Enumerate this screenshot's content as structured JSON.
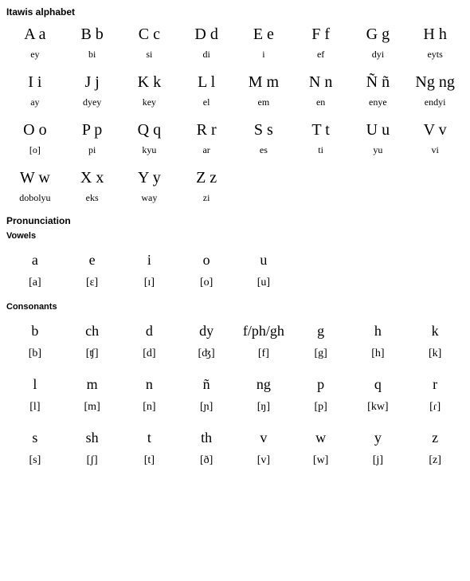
{
  "titles": {
    "alphabet": "Itawis alphabet",
    "pronunciation": "Pronunciation",
    "vowels": "Vowels",
    "consonants": "Consonants"
  },
  "alphabet": {
    "rows": [
      {
        "letters": [
          "A a",
          "B b",
          "C c",
          "D d",
          "E e",
          "F f",
          "G g",
          "H h"
        ],
        "names": [
          "ey",
          "bi",
          "si",
          "di",
          "i",
          "ef",
          "dyi",
          "eyts"
        ]
      },
      {
        "letters": [
          "I i",
          "J j",
          "K k",
          "L l",
          "M m",
          "N n",
          "Ñ ñ",
          "Ng ng"
        ],
        "names": [
          "ay",
          "dyey",
          "key",
          "el",
          "em",
          "en",
          "enye",
          "endyi"
        ]
      },
      {
        "letters": [
          "O o",
          "P p",
          "Q q",
          "R r",
          "S s",
          "T t",
          "U u",
          "V v"
        ],
        "names": [
          "[o]",
          "pi",
          "kyu",
          "ar",
          "es",
          "ti",
          "yu",
          "vi"
        ]
      },
      {
        "letters": [
          "W w",
          "X x",
          "Y y",
          "Z z",
          "",
          "",
          "",
          ""
        ],
        "names": [
          "dobolyu",
          "eks",
          "way",
          "zi",
          "",
          "",
          "",
          ""
        ]
      }
    ]
  },
  "vowels": {
    "letters": [
      "a",
      "e",
      "i",
      "o",
      "u",
      "",
      "",
      ""
    ],
    "ipa": [
      "[a]",
      "[ɛ]",
      "[ɪ]",
      "[o]",
      "[u]",
      "",
      "",
      ""
    ]
  },
  "consonants": {
    "rows": [
      {
        "letters": [
          "b",
          "ch",
          "d",
          "dy",
          "f/ph/gh",
          "g",
          "h",
          "k"
        ],
        "ipa": [
          "[b]",
          "[ʧ]",
          "[d]",
          "[ʤ]",
          "[f]",
          "[g]",
          "[h]",
          "[k]"
        ]
      },
      {
        "letters": [
          "l",
          "m",
          "n",
          "ñ",
          "ng",
          "p",
          "q",
          "r"
        ],
        "ipa": [
          "[l]",
          "[m]",
          "[n]",
          "[ɲ]",
          "[ŋ]",
          "[p]",
          "[kw]",
          "[ɾ]"
        ]
      },
      {
        "letters": [
          "s",
          "sh",
          "t",
          "th",
          "v",
          "w",
          "y",
          "z"
        ],
        "ipa": [
          "[s]",
          "[ʃ]",
          "[t]",
          "[ð]",
          "[v]",
          "[w]",
          "[j]",
          "[z]"
        ]
      }
    ]
  }
}
